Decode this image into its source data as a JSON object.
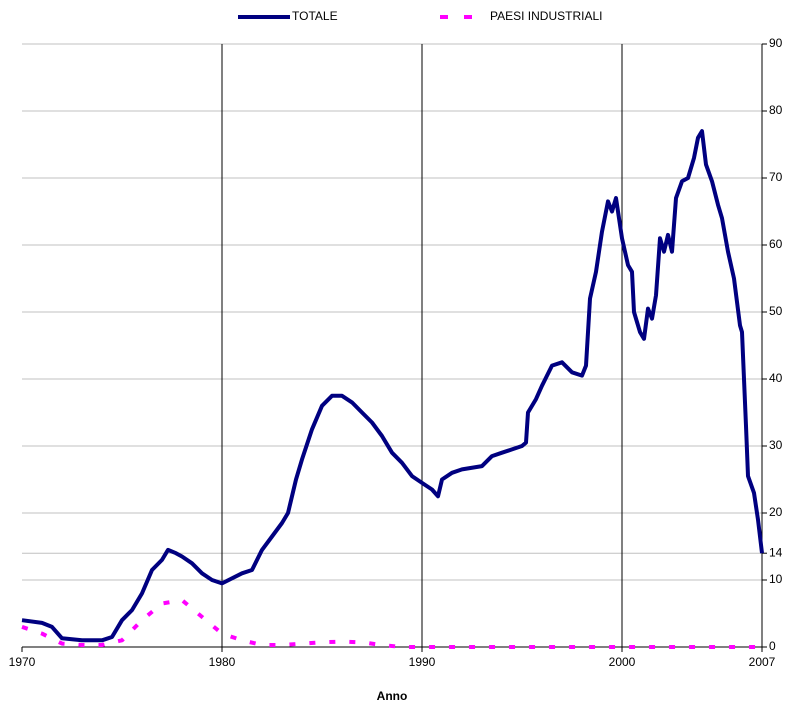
{
  "chart_data": {
    "type": "line",
    "xlabel": "Anno",
    "xlim": [
      1970,
      2007
    ],
    "xticks": [
      1970,
      1980,
      1990,
      2000,
      2007
    ],
    "ylim": [
      0,
      90
    ],
    "yticks": [
      0,
      10,
      14,
      20,
      30,
      40,
      50,
      60,
      70,
      80,
      90
    ],
    "grid": true,
    "y_axis_side": "right",
    "legend": "top",
    "series": [
      {
        "name": "TOTALE",
        "color": "#000080",
        "dashed": false,
        "x": [
          1970,
          1971,
          1971.5,
          1972,
          1973,
          1974,
          1974.5,
          1975,
          1975.5,
          1976,
          1976.5,
          1977,
          1977.3,
          1977.7,
          1978,
          1978.5,
          1979,
          1979.5,
          1980,
          1981,
          1981.5,
          1982,
          1982.5,
          1983,
          1983.3,
          1983.7,
          1984,
          1984.5,
          1985,
          1985.5,
          1986,
          1986.5,
          1987,
          1987.5,
          1988,
          1988.5,
          1989,
          1989.5,
          1990,
          1990.5,
          1990.8,
          1991,
          1991.5,
          1992,
          1993,
          1993.5,
          1994,
          1994.5,
          1995,
          1995.2,
          1995.3,
          1995.7,
          1996,
          1996.5,
          1997,
          1997.5,
          1998,
          1998.2,
          1998.4,
          1998.7,
          1999,
          1999.3,
          1999.5,
          1999.7,
          2000,
          2000.3,
          2000.5,
          2000.6,
          2000.9,
          2001.1,
          2001.3,
          2001.5,
          2001.7,
          2001.9,
          2002.1,
          2002.3,
          2002.5,
          2002.7,
          2003,
          2003.3,
          2003.6,
          2003.8,
          2004,
          2004.2,
          2004.5,
          2004.8,
          2005,
          2005.3,
          2005.6,
          2005.9,
          2006,
          2006.2,
          2006.3,
          2006.6,
          2006.8,
          2007
        ],
        "values": [
          4,
          3.6,
          3,
          1.3,
          1,
          1,
          1.5,
          4,
          5.5,
          8,
          11.5,
          13,
          14.5,
          14,
          13.5,
          12.5,
          11,
          10,
          9.5,
          11,
          11.5,
          14.5,
          16.5,
          18.5,
          20,
          25,
          28,
          32.5,
          36,
          37.5,
          37.5,
          36.5,
          35,
          33.5,
          31.5,
          29,
          27.5,
          25.5,
          24.5,
          23.5,
          22.5,
          25,
          26,
          26.5,
          27,
          28.5,
          29,
          29.5,
          30,
          30.5,
          35,
          37,
          39,
          42,
          42.5,
          41,
          40.5,
          42,
          52,
          56,
          62,
          66.5,
          65,
          67,
          61,
          57,
          56,
          50,
          47,
          46,
          50.5,
          49,
          52.5,
          61,
          59,
          61.5,
          59,
          67,
          69.5,
          70,
          73,
          76,
          77,
          72,
          69.5,
          66,
          64,
          59,
          55,
          48,
          47,
          33,
          25.5,
          23,
          19,
          14
        ]
      },
      {
        "name": "PAESI INDUSTRIALI",
        "color": "#ff00ff",
        "dashed": true,
        "x": [
          1970,
          1971,
          1972,
          1973,
          1974,
          1975,
          1976,
          1977,
          1978,
          1979,
          1980,
          1981,
          1982,
          1983,
          1984,
          1985,
          1986,
          1987,
          1988,
          1989,
          1990,
          1995,
          2000,
          2005,
          2007
        ],
        "values": [
          3,
          2,
          0.5,
          0.3,
          0.3,
          1,
          4,
          6.5,
          7,
          4.5,
          2,
          1,
          0.3,
          0.3,
          0.5,
          0.7,
          0.8,
          0.7,
          0.3,
          0,
          0,
          0,
          0,
          0,
          0
        ]
      }
    ]
  }
}
